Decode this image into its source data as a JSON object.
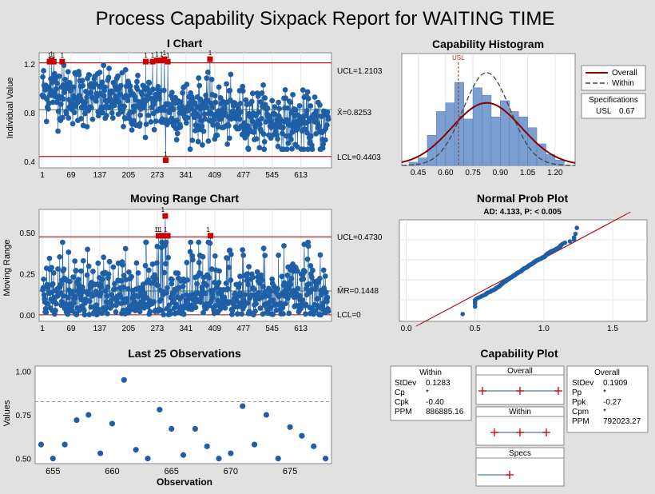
{
  "report": {
    "title": "Process Capability Sixpack Report for WAITING TIME"
  },
  "colors": {
    "point": "#1f5fa6",
    "flag": "#cc0000",
    "limit": "#b22222",
    "overall": "#8b0000",
    "within": "#444444",
    "bar": "#7b9fd0",
    "frame": "#ffffff"
  },
  "chart_data": [
    {
      "id": "i_chart",
      "type": "scatter",
      "title": "I Chart",
      "ylabel": "Individual Value",
      "xlabel": "",
      "xlim": [
        1,
        678
      ],
      "ylim": [
        0.36,
        1.28
      ],
      "x_ticks": [
        1,
        69,
        137,
        205,
        273,
        341,
        409,
        477,
        545,
        613
      ],
      "y_ticks": [
        {
          "v": 0.4,
          "label": "0.4"
        },
        {
          "v": 0.8,
          "label": "0.8"
        },
        {
          "v": 1.2,
          "label": "1.2"
        }
      ],
      "ucl": 1.2103,
      "center": 0.8253,
      "lcl": 0.4403,
      "ucl_label": "UCL=1.2103",
      "center_label": "X̄=0.8253",
      "lcl_label": "LCL=0.4403",
      "flag_label": "1",
      "flagged_points": [
        [
          18,
          1.22
        ],
        [
          23,
          1.23
        ],
        [
          28,
          1.22
        ],
        [
          48,
          1.22
        ],
        [
          246,
          1.22
        ],
        [
          262,
          1.22
        ],
        [
          272,
          1.23
        ],
        [
          283,
          1.23
        ],
        [
          290,
          1.24
        ],
        [
          298,
          1.22
        ],
        [
          293,
          0.41
        ],
        [
          398,
          1.24
        ]
      ]
    },
    {
      "id": "mr_chart",
      "type": "scatter",
      "title": "Moving Range Chart",
      "ylabel": "Moving Range",
      "xlabel": "",
      "xlim": [
        1,
        678
      ],
      "ylim": [
        -0.03,
        0.63
      ],
      "x_ticks": [
        1,
        69,
        137,
        205,
        273,
        341,
        409,
        477,
        545,
        613
      ],
      "y_ticks": [
        {
          "v": 0.0,
          "label": "0.00"
        },
        {
          "v": 0.25,
          "label": "0.25"
        },
        {
          "v": 0.5,
          "label": "0.50"
        }
      ],
      "ucl": 0.473,
      "center": 0.1448,
      "lcl": 0,
      "ucl_label": "UCL=0.4730",
      "center_label": "M̄R=0.1448",
      "lcl_label": "LCL=0",
      "flag_label": "1",
      "flagged_points": [
        [
          276,
          0.48
        ],
        [
          281,
          0.48
        ],
        [
          286,
          0.48
        ],
        [
          292,
          0.6
        ],
        [
          298,
          0.48
        ],
        [
          399,
          0.48
        ]
      ]
    },
    {
      "id": "last25",
      "type": "scatter",
      "title": "Last 25 Observations",
      "xlabel": "Observation",
      "ylabel": "Values",
      "xlim": [
        653.5,
        678.5
      ],
      "ylim": [
        0.48,
        1.02
      ],
      "x_ticks": [
        655,
        660,
        665,
        670,
        675
      ],
      "y_ticks": [
        {
          "v": 0.5,
          "label": "0.50"
        },
        {
          "v": 0.75,
          "label": "0.75"
        },
        {
          "v": 1.0,
          "label": "1.00"
        }
      ],
      "mean": 0.8253,
      "x": [
        654,
        655,
        656,
        657,
        658,
        659,
        660,
        661,
        662,
        663,
        664,
        665,
        666,
        667,
        668,
        669,
        670,
        671,
        672,
        673,
        674,
        675,
        676,
        677,
        678
      ],
      "y": [
        0.58,
        0.5,
        0.58,
        0.72,
        0.75,
        0.53,
        0.7,
        0.95,
        0.55,
        0.5,
        0.78,
        0.67,
        0.52,
        0.67,
        0.57,
        0.5,
        0.53,
        0.8,
        0.58,
        0.75,
        0.5,
        0.68,
        0.63,
        0.57,
        0.5
      ]
    },
    {
      "id": "capability_histogram",
      "type": "bar",
      "title": "Capability Histogram",
      "xlim": [
        0.36,
        1.31
      ],
      "ylim": [
        0,
        1.0
      ],
      "x_ticks": [
        {
          "v": 0.45,
          "label": "0.45"
        },
        {
          "v": 0.6,
          "label": "0.60"
        },
        {
          "v": 0.75,
          "label": "0.75"
        },
        {
          "v": 0.9,
          "label": "0.90"
        },
        {
          "v": 1.05,
          "label": "1.05"
        },
        {
          "v": 1.2,
          "label": "1.20"
        }
      ],
      "bin_width": 0.05,
      "bin_starts": [
        0.4,
        0.45,
        0.5,
        0.55,
        0.6,
        0.65,
        0.7,
        0.75,
        0.8,
        0.85,
        0.9,
        0.95,
        1.0,
        1.05,
        1.1,
        1.15,
        1.2
      ],
      "bin_heights": [
        0.03,
        0.07,
        0.28,
        0.5,
        0.58,
        0.77,
        0.43,
        0.72,
        0.65,
        0.45,
        0.6,
        0.5,
        0.45,
        0.35,
        0.2,
        0.1,
        0.05
      ],
      "usl": 0.67,
      "usl_label": "USL",
      "overall_peak": 0.58,
      "within_peak": 0.86,
      "legend": {
        "overall": "Overall",
        "within": "Within"
      },
      "specs": {
        "title": "Specifications",
        "usl_label": "USL",
        "usl_value": "0.67"
      }
    },
    {
      "id": "normal_prob",
      "type": "scatter",
      "title": "Normal Prob Plot",
      "subtitle": "AD: 4.133, P: < 0.005",
      "xlim": [
        -0.05,
        1.75
      ],
      "x_ticks": [
        {
          "v": 0.0,
          "label": "0.0"
        },
        {
          "v": 0.5,
          "label": "0.5"
        },
        {
          "v": 1.0,
          "label": "1.0"
        },
        {
          "v": 1.5,
          "label": "1.5"
        }
      ]
    }
  ],
  "capability_plot": {
    "title": "Capability Plot",
    "within_stats": {
      "title": "Within",
      "rows": [
        {
          "k": "StDev",
          "v": "0.1283"
        },
        {
          "k": "Cp",
          "v": "*"
        },
        {
          "k": "Cpk",
          "v": "-0.40"
        },
        {
          "k": "PPM",
          "v": "886885.16"
        }
      ]
    },
    "overall_stats": {
      "title": "Overall",
      "rows": [
        {
          "k": "StDev",
          "v": "0.1909"
        },
        {
          "k": "Pp",
          "v": "*"
        },
        {
          "k": "Ppk",
          "v": "-0.27"
        },
        {
          "k": "Cpm",
          "v": "*"
        },
        {
          "k": "PPM",
          "v": "792023.27"
        }
      ]
    },
    "labels": {
      "overall": "Overall",
      "within": "Within",
      "specs": "Specs"
    }
  }
}
